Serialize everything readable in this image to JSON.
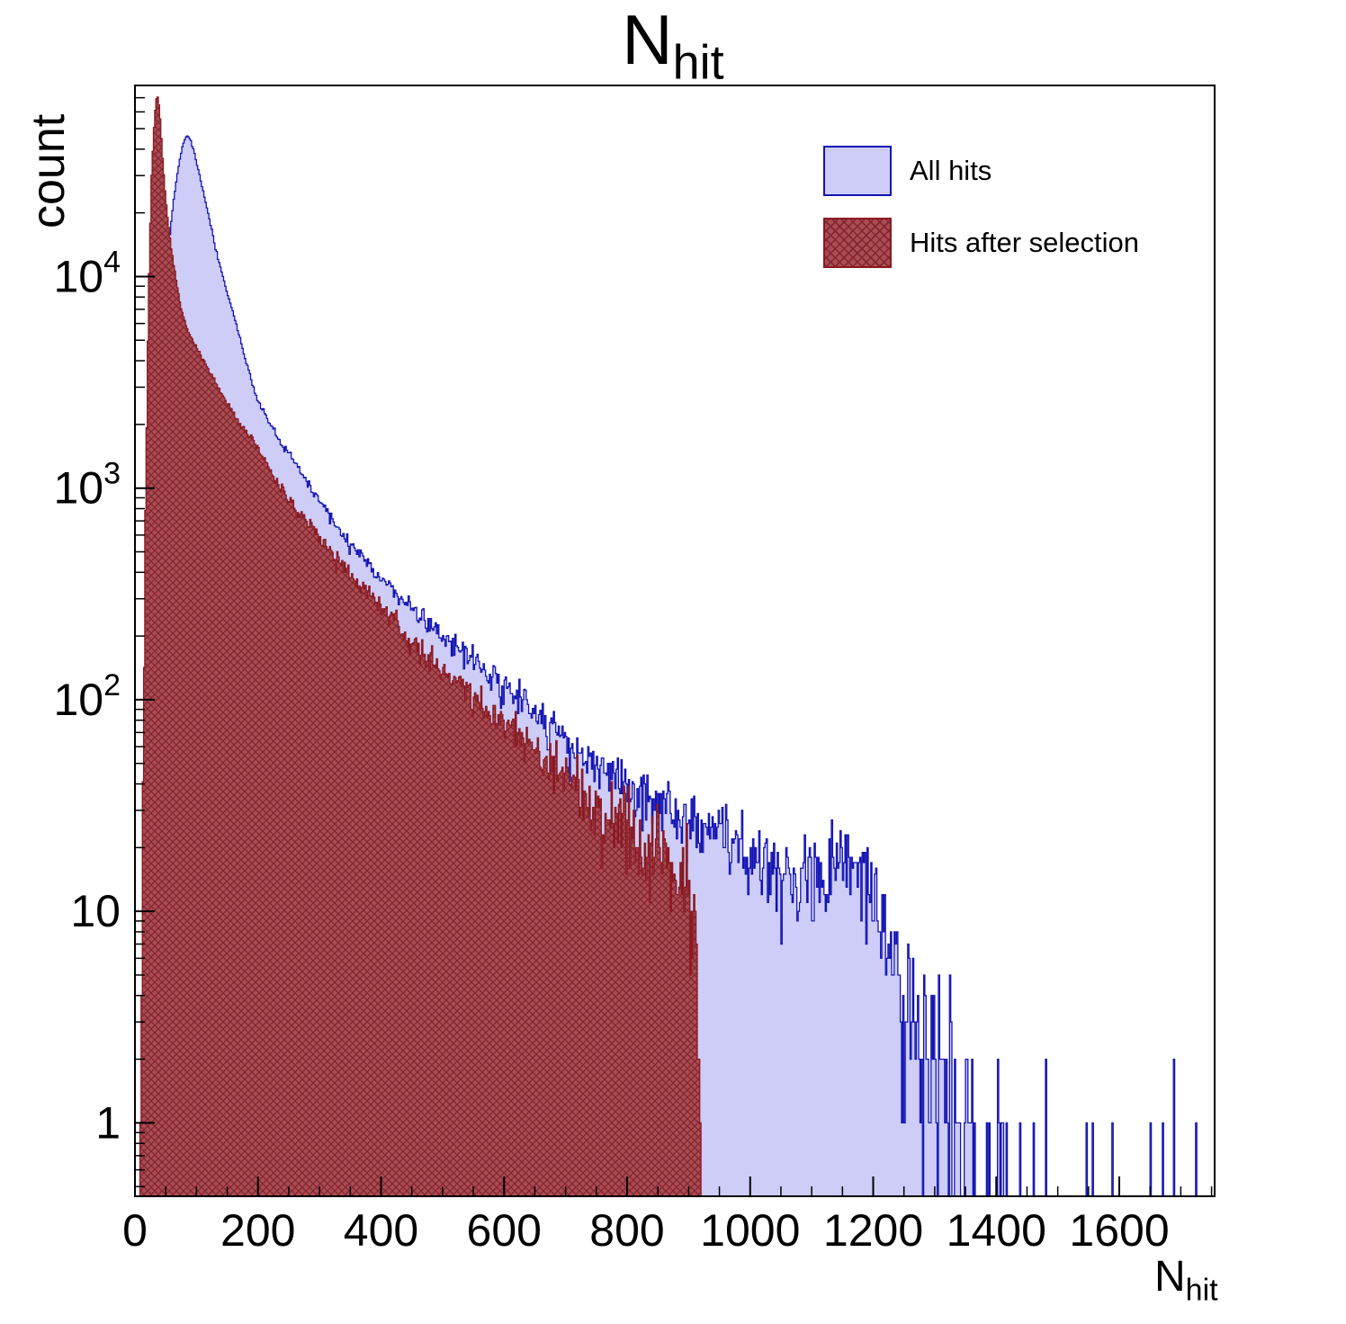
{
  "title": {
    "main": "N",
    "sub": "hit"
  },
  "axes": {
    "y_label": "count",
    "x_label": {
      "main": "N",
      "sub": "hit"
    },
    "x_ticks": [
      0,
      200,
      400,
      600,
      800,
      1000,
      1200,
      1400,
      1600
    ],
    "x_minor_step": 50,
    "y_decades": [
      1,
      10,
      100,
      1000,
      10000
    ]
  },
  "legend": {
    "items": [
      {
        "label": "All hits"
      },
      {
        "label": "Hits after selection"
      }
    ]
  },
  "chart_data": {
    "type": "histogram",
    "title": "N_hit",
    "xlabel": "N_hit",
    "ylabel": "count",
    "y_scale": "log",
    "x_range": [
      0,
      1755
    ],
    "y_range": [
      0.45,
      80000
    ],
    "bin_width": 2,
    "grid": false,
    "legend_position": "top-right",
    "series": [
      {
        "name": "All hits",
        "fill": "#cdcdf7",
        "stroke": "#1414b4",
        "hatch": null,
        "cutoff": 1755,
        "peak": {
          "x": 84,
          "count": 46500
        },
        "anchors": [
          [
            12,
            0.4
          ],
          [
            18,
            3
          ],
          [
            24,
            40
          ],
          [
            30,
            300
          ],
          [
            36,
            1200
          ],
          [
            42,
            3500
          ],
          [
            48,
            7500
          ],
          [
            55,
            14000
          ],
          [
            62,
            22000
          ],
          [
            70,
            32000
          ],
          [
            78,
            42000
          ],
          [
            84,
            46500
          ],
          [
            90,
            44500
          ],
          [
            96,
            39000
          ],
          [
            105,
            30000
          ],
          [
            115,
            22500
          ],
          [
            125,
            16500
          ],
          [
            135,
            12200
          ],
          [
            150,
            8300
          ],
          [
            165,
            5900
          ],
          [
            180,
            4000
          ],
          [
            200,
            2600
          ],
          [
            220,
            2000
          ],
          [
            240,
            1600
          ],
          [
            260,
            1320
          ],
          [
            280,
            1060
          ],
          [
            300,
            870
          ],
          [
            330,
            650
          ],
          [
            360,
            500
          ],
          [
            390,
            400
          ],
          [
            420,
            330
          ],
          [
            450,
            272
          ],
          [
            480,
            228
          ],
          [
            510,
            195
          ],
          [
            540,
            163
          ],
          [
            570,
            138
          ],
          [
            600,
            112
          ],
          [
            640,
            90
          ],
          [
            680,
            72
          ],
          [
            720,
            58
          ],
          [
            760,
            47
          ],
          [
            800,
            39
          ],
          [
            840,
            33
          ],
          [
            880,
            28
          ],
          [
            920,
            24
          ],
          [
            960,
            21
          ],
          [
            1000,
            18.5
          ],
          [
            1040,
            16.5
          ],
          [
            1080,
            15.5
          ],
          [
            1120,
            16.5
          ],
          [
            1150,
            18.5
          ],
          [
            1175,
            14
          ],
          [
            1200,
            11.5
          ],
          [
            1225,
            7
          ],
          [
            1250,
            4.2
          ],
          [
            1275,
            2.8
          ],
          [
            1300,
            2
          ],
          [
            1340,
            1.2
          ],
          [
            1390,
            0.35
          ],
          [
            1450,
            0.18
          ],
          [
            1520,
            0.1
          ],
          [
            1600,
            0.08
          ],
          [
            1700,
            0.07
          ],
          [
            1755,
            0.06
          ]
        ]
      },
      {
        "name": "Hits after selection",
        "fill": "#ad4a52",
        "stroke": "#8a1a22",
        "hatch": "#7e2730",
        "cutoff": 920,
        "peak": {
          "x": 36,
          "count": 74000
        },
        "anchors": [
          [
            6,
            0.3
          ],
          [
            12,
            15
          ],
          [
            17,
            800
          ],
          [
            22,
            8000
          ],
          [
            27,
            30000
          ],
          [
            32,
            58000
          ],
          [
            36,
            74000
          ],
          [
            40,
            62000
          ],
          [
            45,
            36000
          ],
          [
            50,
            23000
          ],
          [
            57,
            15000
          ],
          [
            65,
            10500
          ],
          [
            75,
            7000
          ],
          [
            85,
            5600
          ],
          [
            95,
            4900
          ],
          [
            110,
            4100
          ],
          [
            125,
            3400
          ],
          [
            140,
            2800
          ],
          [
            160,
            2280
          ],
          [
            180,
            1830
          ],
          [
            200,
            1560
          ],
          [
            225,
            1130
          ],
          [
            250,
            890
          ],
          [
            275,
            715
          ],
          [
            300,
            585
          ],
          [
            330,
            458
          ],
          [
            360,
            362
          ],
          [
            390,
            293
          ],
          [
            420,
            240
          ],
          [
            450,
            185
          ],
          [
            480,
            156
          ],
          [
            510,
            131
          ],
          [
            540,
            110
          ],
          [
            570,
            92
          ],
          [
            600,
            76
          ],
          [
            640,
            60
          ],
          [
            680,
            48
          ],
          [
            720,
            38
          ],
          [
            760,
            30
          ],
          [
            800,
            24
          ],
          [
            840,
            19.5
          ],
          [
            870,
            16.5
          ],
          [
            895,
            14.5
          ],
          [
            908,
            13
          ],
          [
            913,
            5
          ],
          [
            918,
            1.2
          ],
          [
            920,
            0.6
          ]
        ]
      }
    ]
  }
}
